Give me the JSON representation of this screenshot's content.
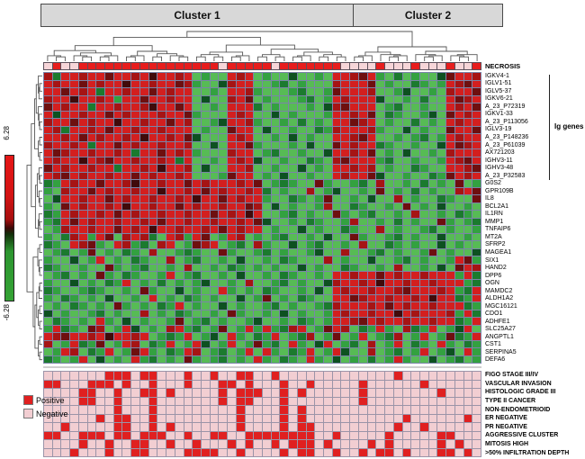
{
  "chart_data": {
    "type": "heatmap",
    "description": "Two-way hierarchical clustering heatmap of gene expression with necrosis status and clinical annotations",
    "columns": 50,
    "clusters": {
      "c1": "Cluster 1",
      "c2": "Cluster 2",
      "split_column": 35
    },
    "scale": {
      "max": "6.28",
      "min": "-6.28"
    },
    "necrosis": {
      "label": "NECROSIS",
      "pattern": "01001111111111111111011111011111110000100010001001",
      "positive_color": "#e71d1d",
      "negative_color": "#f6d5d8"
    },
    "ig_bracket": {
      "label": "Ig genes",
      "gene_span": [
        1,
        14
      ]
    },
    "genes": [
      "IGKV4-1",
      "IGLV1-51",
      "IGLV5-37",
      "IGKV6-21",
      "A_23_P72319",
      "IGKV1-33",
      "A_23_P113056",
      "IGLV3-19",
      "A_23_P148236",
      "A_23_P61039",
      "AX721203",
      "IGHV3-11",
      "IGHV3-48",
      "A_23_P32583",
      "G0S2",
      "GPR109B",
      "IL8",
      "BCL2A1",
      "IL1RN",
      "MMP1",
      "TNFAIP6",
      "MT2A",
      "SFRP2",
      "MAGEA1",
      "SIX1",
      "HAND2",
      "DPP6",
      "OGN",
      "MAMDC2",
      "ALDH1A2",
      "MGC16121",
      "CDO1",
      "ADHFE1",
      "SLC25A27",
      "ANGPTL1",
      "CST1",
      "SERPINA5",
      "DEFA6"
    ],
    "expression_color_key": {
      "R": "#d31f1f",
      "r": "#a61414",
      "D": "#6e0f0f",
      "B": "#400a0a",
      "G": "#57bb55",
      "g": "#33a140",
      "K": "#1b7a2e",
      "k": "#0d5120"
    },
    "expression_rows": [
      "rKRRrRRDRRrRBRRrRGgGGRrRGgGGkGGgGRRrDRgGKGgGGkDRRr",
      "RrRRDRrRRBRRrRRDrgGGkrRRGGgKGgGGGrRRRDGgGGKgGgRrDR",
      "RRDRrRKRRrRRDRrRRGGgGRRrgGGGgKGGgDRRRrGGgkGGgGrRRD",
      "rRRBRRrRgRRDRRrRRGkGGrRDGgGGGgKGgRrRRRkGGgGKGGRDrR",
      "DRrRRKRRrRRrBRRDRGGgGRRRKGgGGGgGkrDRRRGgKGGgGGRrRD",
      "RkRRrRRDRrRRRrRRDgGGGRrRGGkGgGGGgRRrRDGKgGGgkGDRrR",
      "rRRDRrRRBRRrRRDRrGGgkRRrgGGgGKGgGRRDrRGgGGKGgGRrRR",
      "RrKRRrRDRRrRRrRRRGgGGDRRGkGGgGGKgrRRRrgGGkGgGGDRRD",
      "RRrRDRrRRrRBRRrRDkGGGRrRGGgGkGgGGRRrDRGGgGgKGgRrRR",
      "rRRrRKRRDRrRRrRRrGGkGRRDgGGGgGkGGDRrRRKgGGgGGkRDrR",
      "RDrRRrRRrRKRRDRrRgGGGrRRGgKGGgGGkRRrRDGgGkGGgGrRRR",
      "RrRRBRrDRRrRRrRKRGGgGRrRkGGgGGKgGrDRRRgKGGgGGgRrDR",
      "DRrRRrRRKRRrRBRRrGkGGRRrGGgGGkGgGRRrRrGgGGKgGGRRrD",
      "RrDRrRRrRRDRrRRrRGGGgDRRGgGkGGgGGRrRRDkGGgGGKgDRrR",
      "KgRrRRDRRrBRRrRRDRrRRRrRDGgKgGGDgGGgKGrGGgGKGgGDGg",
      "gGrRRDRrRRrRRBRRrRDRrRRrRKGgGGrGgkGGgGDGgGKGgGGrRD",
      "GkRRrRRDRrRRrRRrRBRRDRrRRgGGKgGgDGGgGkGGrGgGGKgGGD",
      "gGDRrRRrRBRRrRRDRrRRrRRDrGkGgGGgrGGKgGGgGDGgGkGGgG",
      "KgRrRRrRDRrRRrRRrRRDRrRBRGGgKGgGGDgGgKGGgGrGGgGKgG",
      "gKRDRrRRrRRrRDRRrRRrRRrRDkGGgGKgGGgrGGgGKGgGGDgGgK",
      "GgrRRrRRDRrRBRRrRRrRDRrRRGgGGkGgGGKgGGrGgGGgKGgGGg",
      "gGKrRgRDGrRrKGRrgRDGgRrGgGgKGGgGkGGDgGGgKGgGGkGGgG",
      "KgGRrDgGRrgKGrRGgDrRGgKGrgGGkGgKGGgGrGGKgGgGGkGgGG",
      "GgKGgDGgGKgGrGGgKgGGDgGGgKGgGGgkGGrGGgKGgGGgDGgGGk",
      "gGGkGgRGgGKgGGrGgKGGgGkGGgGKgGGGrGgGGkGGgKGgGGgRDg",
      "KgGGgGGDgGgKGGgGrGGgGKgGgGgGGkGgGGKgGGgGrGGgGkGDRr",
      "GgKGgGDgGKgGGgRGgKGGgGkGGgGKgGGgGRRrRRDRrRRrRRRgRK",
      "gGGkGgGKgRGgGKGgGgkGGgGrGGgKGgGGkrRRrRBRRrRRrRRRgK",
      "KgGGgKgGGgGDgGGkGgGGRgGgGKgGGgGkGRrRRrRRrDRRRrRgKR",
      "gGKgGgGkGGgGRGgGKgGgGGkGgDGgGKgGGRRDrRRrRRrRBRRKgR",
      "GgGKgGgGDgGgGKgRGgGGkGgGGgKGgGGgKrRRRrRDRrRRrRRRKg",
      "kGgGGgKGgGGrGgGKgGGgGDgGGgGkGgGGgRrRRrRRBRrRRRrgRK",
      "GKgGgGRgGkGgGGgDGgKGgGGgkGGgGKgGgRRrDRrRRrRRrRRKgR",
      "gRKgGDrGgRkGgGrRgKGgDGgRgRgKrRGgDRrGKgRgGrKgRGgkRG",
      "RrDRRrRBRRrRGgKgRGgkGRgGKgRGgKrGgDGgRGgKrGgRGgDKgR",
      "rGgRKgDGgRrGKgRGgRkGgRGgDgKGRgGkRGgKGrGgRGKgGRgGKg",
      "GgRrGKgRGgDRgGKgRrGgKGgRGRgGKgRGgRkGGrGgKGgRGgkGRg",
      "KgGgRGkGgGRgKGgGDgGgKGgGRgGKgGRgGkGgGKGgRgGGkGgKGg"
    ],
    "clinical": {
      "labels": [
        "FIGO STAGE III/IV",
        "VASCULAR INVASION",
        "HISTOLOGIC GRADE III",
        "TYPE II CANCER",
        "NON-ENDOMETRIOID",
        "ER NEGATIVE",
        "PR NEGATIVE",
        "AGGRESSIVE CLUSTER",
        "MITOSIS HIGH",
        ">50% INFILTRATION DEPTH"
      ],
      "rows": [
        "00000001110110001001001100100000000000001000000000",
        "11000111010010001000110100010010000010000001000000",
        "00001100100110100000101110010100000010000000010000",
        "00001100100010000000101100010000000010000000000000",
        "00000000100010000000001000010100000000000000000000",
        "00000010110010000000001000010100000000000100000010",
        "00100000110010100000001000010110000000001001000000",
        "11001110110111001001100111111110010000010000011000",
        "00001001001100100100010100101110100001010000010100",
        "00010001001100001111001000010110010010110100011010"
      ],
      "positive_color": "#e02020",
      "negative_color": "#f2ced2"
    },
    "legend": {
      "positive": "Positive",
      "negative": "Negative"
    },
    "layout": {
      "grid_line_color": "#7a84a8",
      "dendrogram_color": "#555555"
    }
  }
}
